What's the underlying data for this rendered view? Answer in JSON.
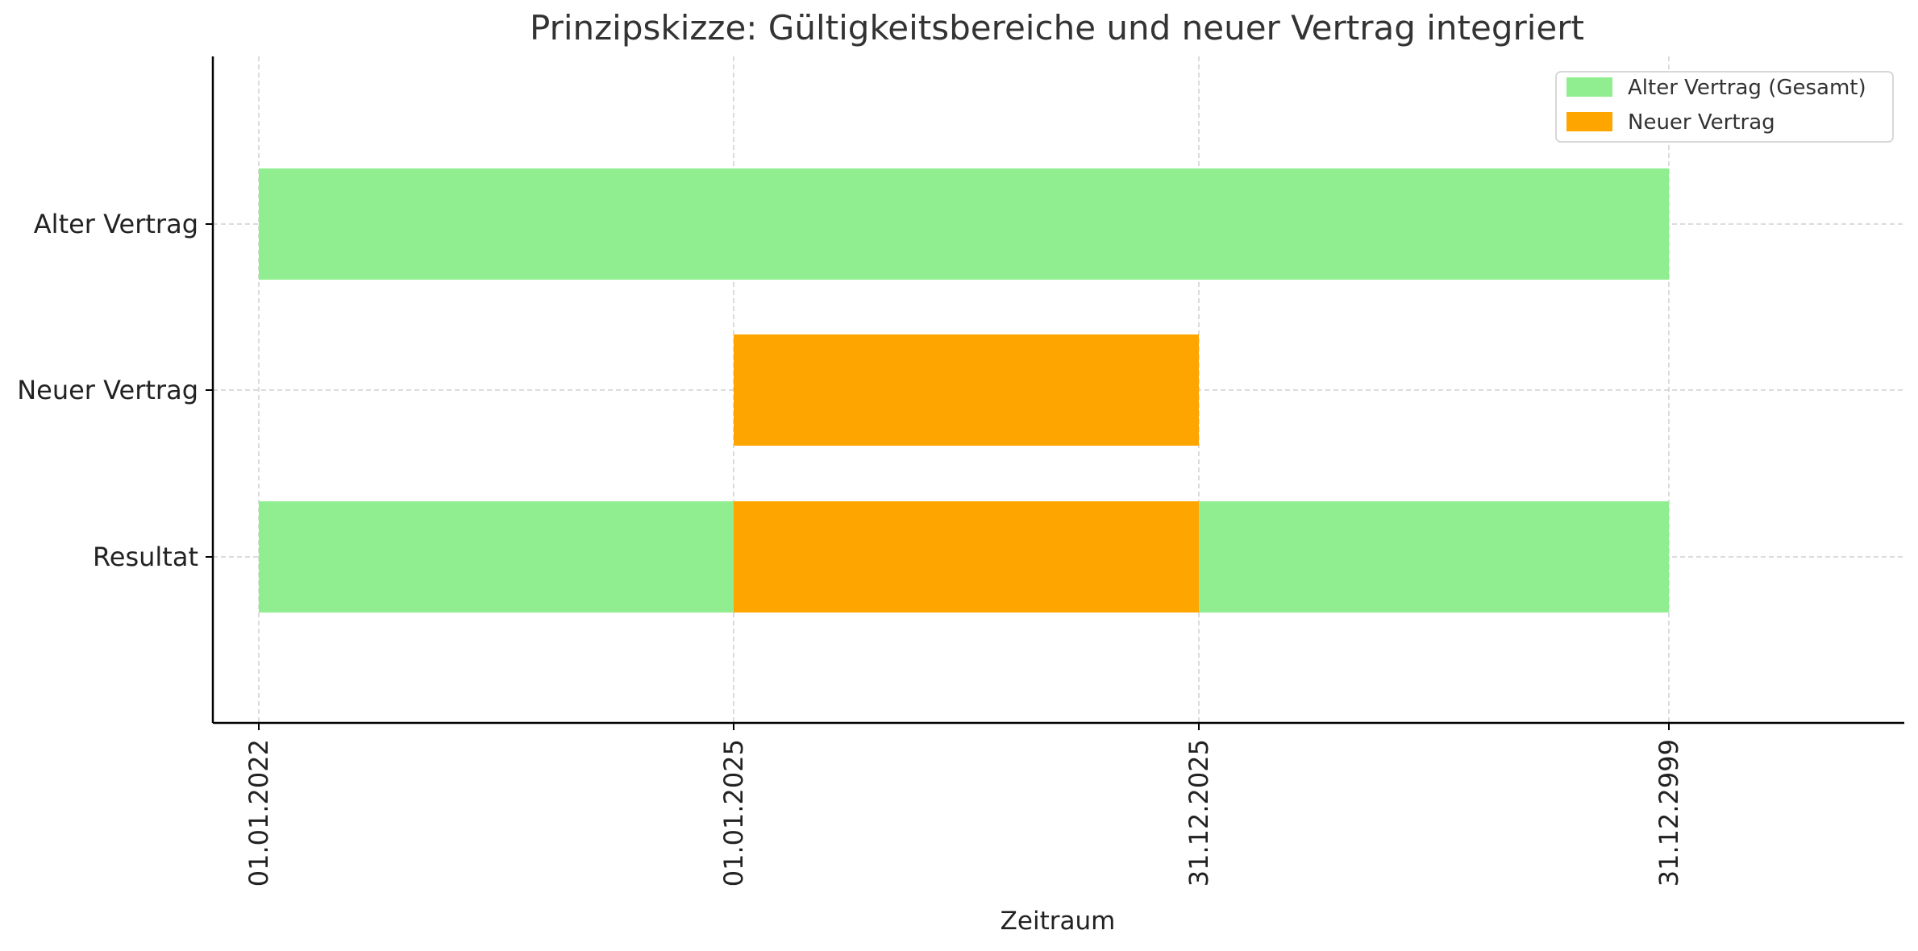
{
  "chart_data": {
    "type": "gantt",
    "title": "Prinzipskizze: Gültigkeitsbereiche und neuer Vertrag integriert",
    "xlabel": "Zeitraum",
    "ylabel": "",
    "x_ticks": [
      "01.01.2022",
      "01.01.2025",
      "31.12.2025",
      "31.12.2999"
    ],
    "y_categories": [
      "Alter Vertrag",
      "Neuer Vertrag",
      "Resultat"
    ],
    "grid": true,
    "legend_position": "top-right",
    "legend": [
      {
        "name": "Alter Vertrag (Gesamt)",
        "color": "#90ee90"
      },
      {
        "name": "Neuer Vertrag",
        "color": "#ffa500"
      }
    ],
    "bars": [
      {
        "row": "Alter Vertrag",
        "start": "01.01.2022",
        "end": "31.12.2999",
        "series": "Alter Vertrag (Gesamt)",
        "color": "#90ee90"
      },
      {
        "row": "Neuer Vertrag",
        "start": "01.01.2025",
        "end": "31.12.2025",
        "series": "Neuer Vertrag",
        "color": "#ffa500"
      },
      {
        "row": "Resultat",
        "start": "01.01.2022",
        "end": "01.01.2025",
        "series": "Alter Vertrag (Gesamt)",
        "color": "#90ee90"
      },
      {
        "row": "Resultat",
        "start": "01.01.2025",
        "end": "31.12.2025",
        "series": "Neuer Vertrag",
        "color": "#ffa500"
      },
      {
        "row": "Resultat",
        "start": "31.12.2025",
        "end": "31.12.2999",
        "series": "Alter Vertrag (Gesamt)",
        "color": "#90ee90"
      }
    ]
  }
}
